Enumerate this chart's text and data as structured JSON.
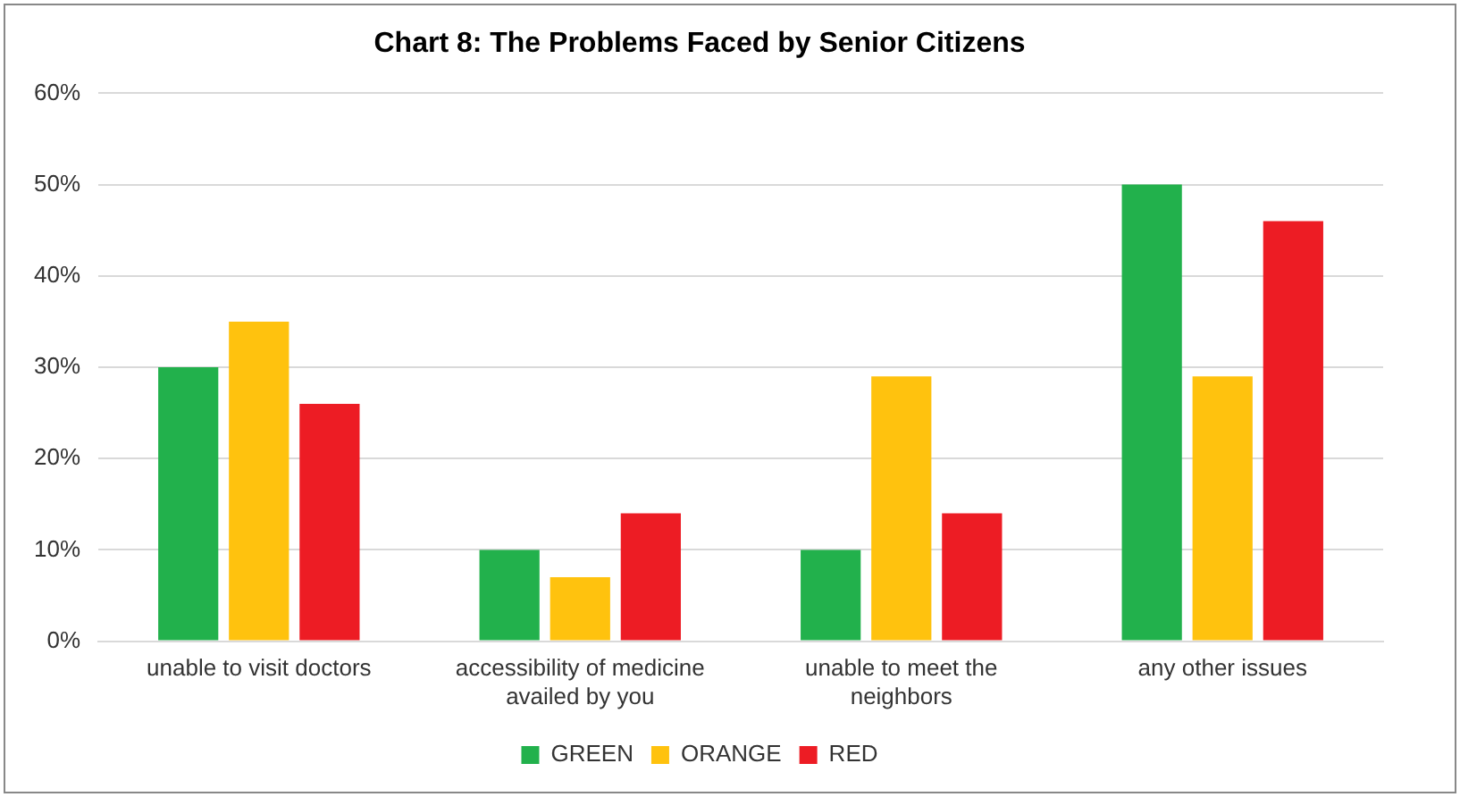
{
  "chart_data": {
    "type": "bar",
    "title": "Chart 8: The Problems Faced by Senior Citizens",
    "categories": [
      "unable to visit doctors",
      "accessibility of medicine availed by you",
      "unable to meet the neighbors",
      "any other issues"
    ],
    "series": [
      {
        "name": "GREEN",
        "color": "#22b14c",
        "values": [
          30,
          10,
          10,
          50
        ]
      },
      {
        "name": "ORANGE",
        "color": "#ffc20e",
        "values": [
          35,
          7,
          29,
          29
        ]
      },
      {
        "name": "RED",
        "color": "#ed1c24",
        "values": [
          26,
          14,
          14,
          46
        ]
      }
    ],
    "ylim": [
      0,
      60
    ],
    "yticks": [
      {
        "value": 0,
        "label": "0%"
      },
      {
        "value": 10,
        "label": "10%"
      },
      {
        "value": 20,
        "label": "20%"
      },
      {
        "value": 30,
        "label": "30%"
      },
      {
        "value": 40,
        "label": "40%"
      },
      {
        "value": 50,
        "label": "50%"
      },
      {
        "value": 60,
        "label": "60%"
      }
    ],
    "grid": "y",
    "legend": "bottom"
  }
}
